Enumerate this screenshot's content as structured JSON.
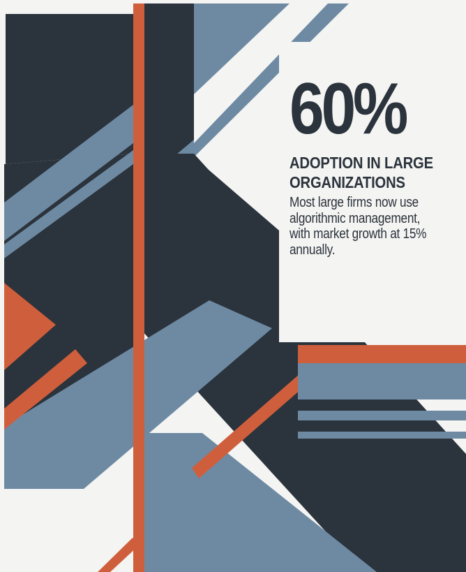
{
  "stat": {
    "value": "60%",
    "headline_lines": [
      "ADOPTION IN LARGE",
      "ORGANIZATIONS"
    ],
    "body_lines": [
      "Most large firms now use",
      "algorithmic management,",
      "with market growth at 15%",
      "annually."
    ]
  },
  "colors": {
    "dark": "#2b333c",
    "slate": "#6e8aa3",
    "orange": "#cf5f3c",
    "background": "#f4f4f2"
  }
}
